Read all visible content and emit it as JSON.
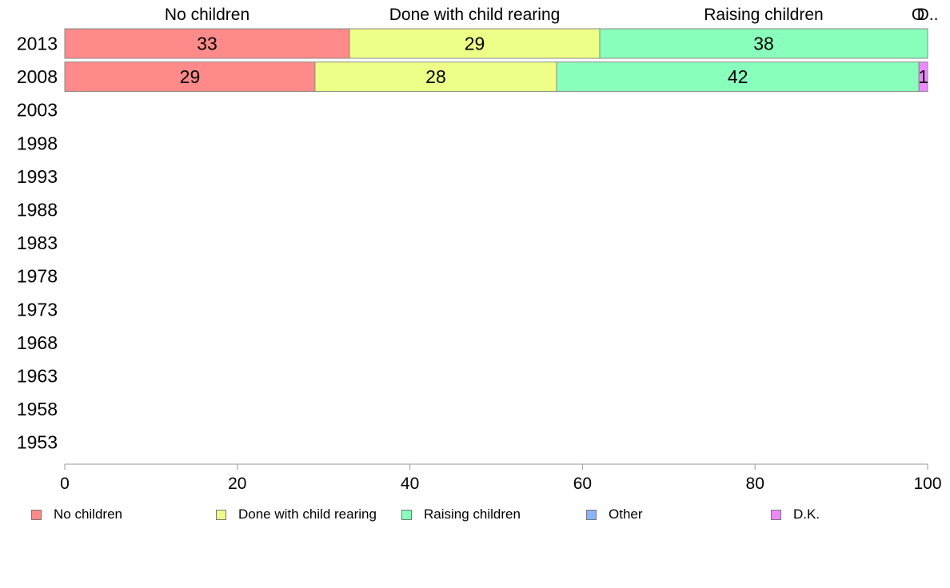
{
  "chart_data": {
    "type": "bar",
    "orientation": "horizontal",
    "stacked": true,
    "categories": [
      "2013",
      "2008",
      "2003",
      "1998",
      "1993",
      "1988",
      "1983",
      "1978",
      "1973",
      "1968",
      "1963",
      "1958",
      "1953"
    ],
    "series": [
      {
        "name": "No children",
        "color": "#ff8a8a",
        "values": [
          33,
          29,
          null,
          null,
          null,
          null,
          null,
          null,
          null,
          null,
          null,
          null,
          null
        ]
      },
      {
        "name": "Done with child rearing",
        "color": "#eeff88",
        "values": [
          29,
          28,
          null,
          null,
          null,
          null,
          null,
          null,
          null,
          null,
          null,
          null,
          null
        ]
      },
      {
        "name": "Raising children",
        "color": "#88ffbb",
        "values": [
          38,
          42,
          null,
          null,
          null,
          null,
          null,
          null,
          null,
          null,
          null,
          null,
          null
        ]
      },
      {
        "name": "Other",
        "color": "#88b4ff",
        "values": [
          0,
          0,
          null,
          null,
          null,
          null,
          null,
          null,
          null,
          null,
          null,
          null,
          null
        ]
      },
      {
        "name": "D.K.",
        "color": "#ee88ff",
        "values": [
          0,
          1,
          null,
          null,
          null,
          null,
          null,
          null,
          null,
          null,
          null,
          null,
          null
        ]
      }
    ],
    "bar_labels": [
      [
        "33",
        "29",
        "38",
        "",
        ""
      ],
      [
        "29",
        "28",
        "42",
        "",
        "1"
      ]
    ],
    "top_labels": [
      {
        "series": "No children",
        "text": "No children"
      },
      {
        "series": "Done with child rearing",
        "text": "Done with child rearing"
      },
      {
        "series": "Raising children",
        "text": "Raising children"
      },
      {
        "series": "Other",
        "text": "O"
      },
      {
        "series": "D.K.",
        "text": "D.."
      }
    ],
    "xlim": [
      0,
      100
    ],
    "xticks": [
      0,
      20,
      40,
      60,
      80,
      100
    ],
    "xlabel": "",
    "ylabel": "",
    "title": "",
    "grid": false,
    "legend_position": "bottom"
  }
}
